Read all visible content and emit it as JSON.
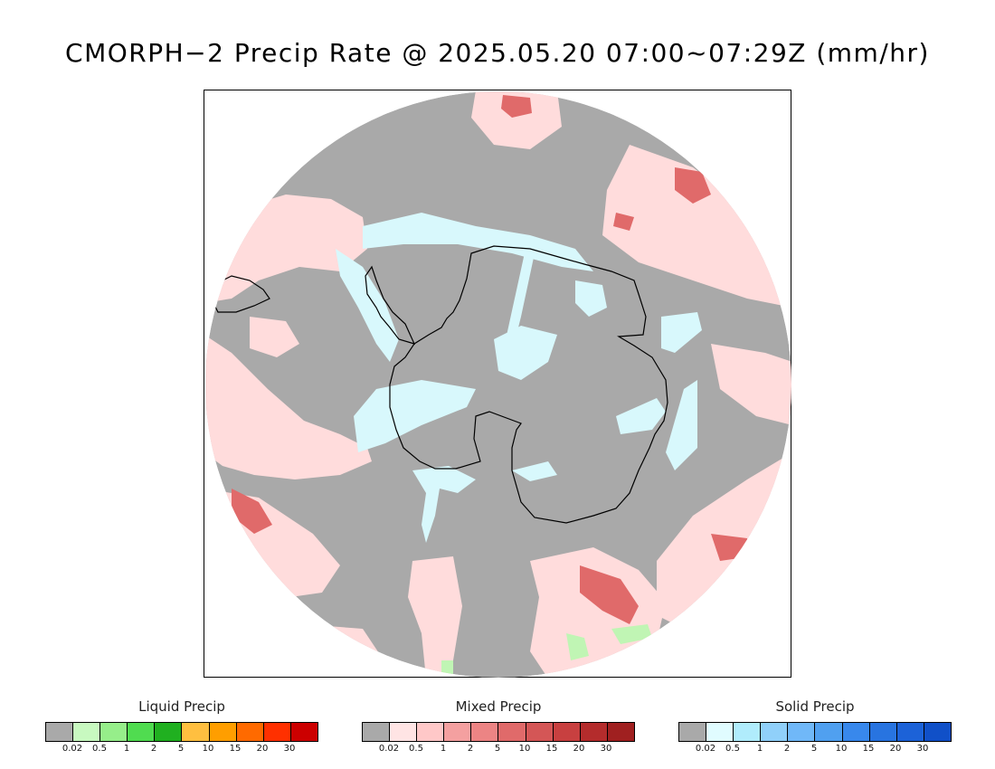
{
  "title": "CMORPH−2 Precip Rate @ 2025.05.20 07:00~07:29Z (mm/hr)",
  "colors": {
    "no_precip": "#a9a9a9",
    "mixed_light": "#ffdcdc",
    "mixed_mid": "#f4a0a0",
    "mixed_strong": "#e06a6a",
    "solid_light": "#d8f8fc",
    "liquid_light": "#c0f5b4",
    "coastline": "#000000"
  },
  "legends": [
    {
      "id": "liquid",
      "title": "Liquid Precip",
      "colors": [
        "#a9a9a9",
        "#c8f9c0",
        "#96ee8a",
        "#50dc50",
        "#20b020",
        "#ffbf40",
        "#ff9e00",
        "#ff6a00",
        "#ff3000",
        "#cc0000"
      ],
      "ticks": [
        "0.02",
        "0.5",
        "1",
        "2",
        "5",
        "10",
        "15",
        "20",
        "30"
      ]
    },
    {
      "id": "mixed",
      "title": "Mixed Precip",
      "colors": [
        "#a9a9a9",
        "#ffe4e4",
        "#ffc8c8",
        "#f4a0a0",
        "#ec8484",
        "#e06a6a",
        "#d45656",
        "#c84040",
        "#b42c2c",
        "#a02020"
      ],
      "ticks": [
        "0.02",
        "0.5",
        "1",
        "2",
        "5",
        "10",
        "15",
        "20",
        "30"
      ]
    },
    {
      "id": "solid",
      "title": "Solid Precip",
      "colors": [
        "#a9a9a9",
        "#e0fcff",
        "#b0ecfc",
        "#90d0fa",
        "#70b8f8",
        "#50a0f0",
        "#3888ec",
        "#2874e0",
        "#1c62d8",
        "#1050c8"
      ],
      "ticks": [
        "0.02",
        "0.5",
        "1",
        "2",
        "5",
        "10",
        "15",
        "20",
        "30"
      ]
    }
  ]
}
